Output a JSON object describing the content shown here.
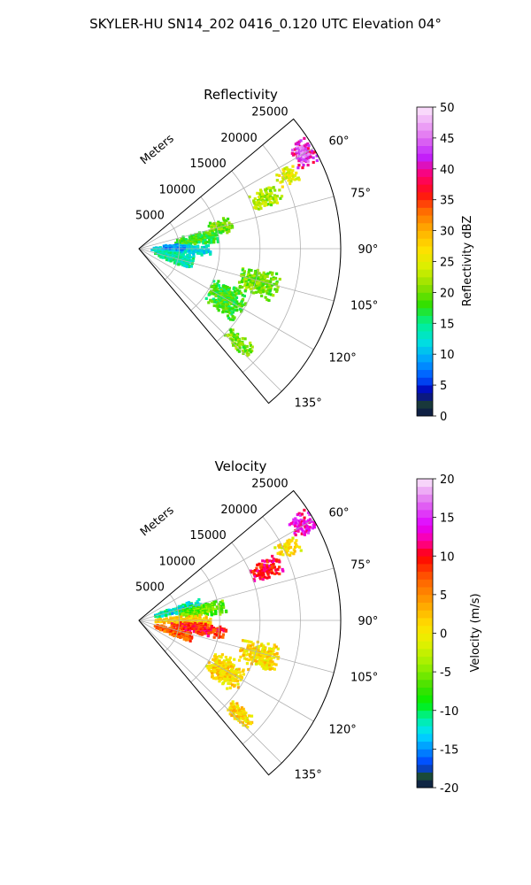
{
  "figure_title": "SKYLER-HU  SN14_202  0416_0.120 UTC Elevation 04°",
  "chart_data": [
    {
      "type": "heatmap",
      "projection": "polar-sector",
      "title": "Reflectivity",
      "radial_label": "Meters",
      "radial_ticks": [
        5000,
        10000,
        15000,
        20000,
        25000
      ],
      "radial_range": [
        0,
        25000
      ],
      "azimuth_ticks_deg": [
        60,
        75,
        90,
        105,
        120,
        135
      ],
      "azimuth_range_deg": [
        50,
        140
      ],
      "grid": true,
      "colorbar": {
        "label": "Reflectivity dBZ",
        "range": [
          0,
          50
        ],
        "ticks": [
          0,
          5,
          10,
          15,
          20,
          25,
          30,
          35,
          40,
          45,
          50
        ],
        "stops": [
          {
            "v": 0,
            "c": "#0a1448"
          },
          {
            "v": 2,
            "c": "#1a3a3a"
          },
          {
            "v": 4,
            "c": "#0000b4"
          },
          {
            "v": 6,
            "c": "#0050ff"
          },
          {
            "v": 9,
            "c": "#00a0ff"
          },
          {
            "v": 12,
            "c": "#00e0e0"
          },
          {
            "v": 15,
            "c": "#00f090"
          },
          {
            "v": 18,
            "c": "#30e000"
          },
          {
            "v": 21,
            "c": "#90e000"
          },
          {
            "v": 24,
            "c": "#d8f000"
          },
          {
            "v": 27,
            "c": "#ffe000"
          },
          {
            "v": 30,
            "c": "#ffb000"
          },
          {
            "v": 33,
            "c": "#ff7000"
          },
          {
            "v": 36,
            "c": "#ff1010"
          },
          {
            "v": 39,
            "c": "#ff0070"
          },
          {
            "v": 42,
            "c": "#c020ff"
          },
          {
            "v": 45,
            "c": "#e070f0"
          },
          {
            "v": 50,
            "c": "#fce8fc"
          }
        ]
      },
      "echo_regions": [
        {
          "az": [
            56,
            64
          ],
          "r": [
            22000,
            25000
          ],
          "value": 40
        },
        {
          "az": [
            57,
            63
          ],
          "r": [
            22500,
            24200
          ],
          "value": 45
        },
        {
          "az": [
            61,
            67
          ],
          "r": [
            19000,
            22000
          ],
          "value": 25
        },
        {
          "az": [
            64,
            72
          ],
          "r": [
            15000,
            19000
          ],
          "value": 22
        },
        {
          "az": [
            70,
            80
          ],
          "r": [
            9000,
            12000
          ],
          "value": 20
        },
        {
          "az": [
            75,
            86
          ],
          "r": [
            4500,
            10500
          ],
          "value": 18
        },
        {
          "az": [
            86,
            96
          ],
          "r": [
            1500,
            9000
          ],
          "value": 12
        },
        {
          "az": [
            96,
            112
          ],
          "r": [
            2000,
            7000
          ],
          "value": 14
        },
        {
          "az": [
            83,
            92
          ],
          "r": [
            3000,
            6000
          ],
          "value": 9
        },
        {
          "az": [
            100,
            112
          ],
          "r": [
            13000,
            18000
          ],
          "value": 20
        },
        {
          "az": [
            112,
            128
          ],
          "r": [
            10000,
            15000
          ],
          "value": 18
        },
        {
          "az": [
            130,
            136
          ],
          "r": [
            15000,
            19000
          ],
          "value": 20
        }
      ]
    },
    {
      "type": "heatmap",
      "projection": "polar-sector",
      "title": "Velocity",
      "radial_label": "Meters",
      "radial_ticks": [
        5000,
        10000,
        15000,
        20000,
        25000
      ],
      "radial_range": [
        0,
        25000
      ],
      "azimuth_ticks_deg": [
        60,
        75,
        90,
        105,
        120,
        135
      ],
      "azimuth_range_deg": [
        50,
        140
      ],
      "grid": true,
      "colorbar": {
        "label": "Velocity (m/s)",
        "range": [
          -20,
          20
        ],
        "ticks": [
          -20,
          -15,
          -10,
          -5,
          0,
          5,
          10,
          15,
          20
        ],
        "stops": [
          {
            "v": -20,
            "c": "#0a1448"
          },
          {
            "v": -18.5,
            "c": "#1a4a3a"
          },
          {
            "v": -17,
            "c": "#003cff"
          },
          {
            "v": -15,
            "c": "#0090ff"
          },
          {
            "v": -13,
            "c": "#00e0ff"
          },
          {
            "v": -11,
            "c": "#00f0a0"
          },
          {
            "v": -9,
            "c": "#00f000"
          },
          {
            "v": -7,
            "c": "#40e000"
          },
          {
            "v": -4,
            "c": "#a0f000"
          },
          {
            "v": -1,
            "c": "#e8f000"
          },
          {
            "v": 1,
            "c": "#ffe000"
          },
          {
            "v": 4,
            "c": "#ffa000"
          },
          {
            "v": 7,
            "c": "#ff6000"
          },
          {
            "v": 10,
            "c": "#ff0000"
          },
          {
            "v": 12,
            "c": "#ff00a0"
          },
          {
            "v": 14,
            "c": "#e000ff"
          },
          {
            "v": 17,
            "c": "#e070f0"
          },
          {
            "v": 20,
            "c": "#fce8fc"
          }
        ]
      },
      "echo_regions": [
        {
          "az": [
            56,
            63
          ],
          "r": [
            22000,
            25000
          ],
          "value": 13
        },
        {
          "az": [
            61,
            67
          ],
          "r": [
            19000,
            22000
          ],
          "value": 0
        },
        {
          "az": [
            70,
            80
          ],
          "r": [
            2000,
            8000
          ],
          "value": -12
        },
        {
          "az": [
            76,
            86
          ],
          "r": [
            5000,
            11000
          ],
          "value": -6
        },
        {
          "az": [
            85,
            96
          ],
          "r": [
            2000,
            9000
          ],
          "value": 2
        },
        {
          "az": [
            93,
            103
          ],
          "r": [
            4000,
            11000
          ],
          "value": 9
        },
        {
          "az": [
            103,
            114
          ],
          "r": [
            2000,
            7000
          ],
          "value": 7
        },
        {
          "az": [
            100,
            112
          ],
          "r": [
            13000,
            18000
          ],
          "value": 1
        },
        {
          "az": [
            112,
            128
          ],
          "r": [
            10000,
            15000
          ],
          "value": 1
        },
        {
          "az": [
            64,
            72
          ],
          "r": [
            15000,
            19000
          ],
          "value": 10
        },
        {
          "az": [
            130,
            136
          ],
          "r": [
            15000,
            19000
          ],
          "value": 1
        }
      ]
    }
  ]
}
